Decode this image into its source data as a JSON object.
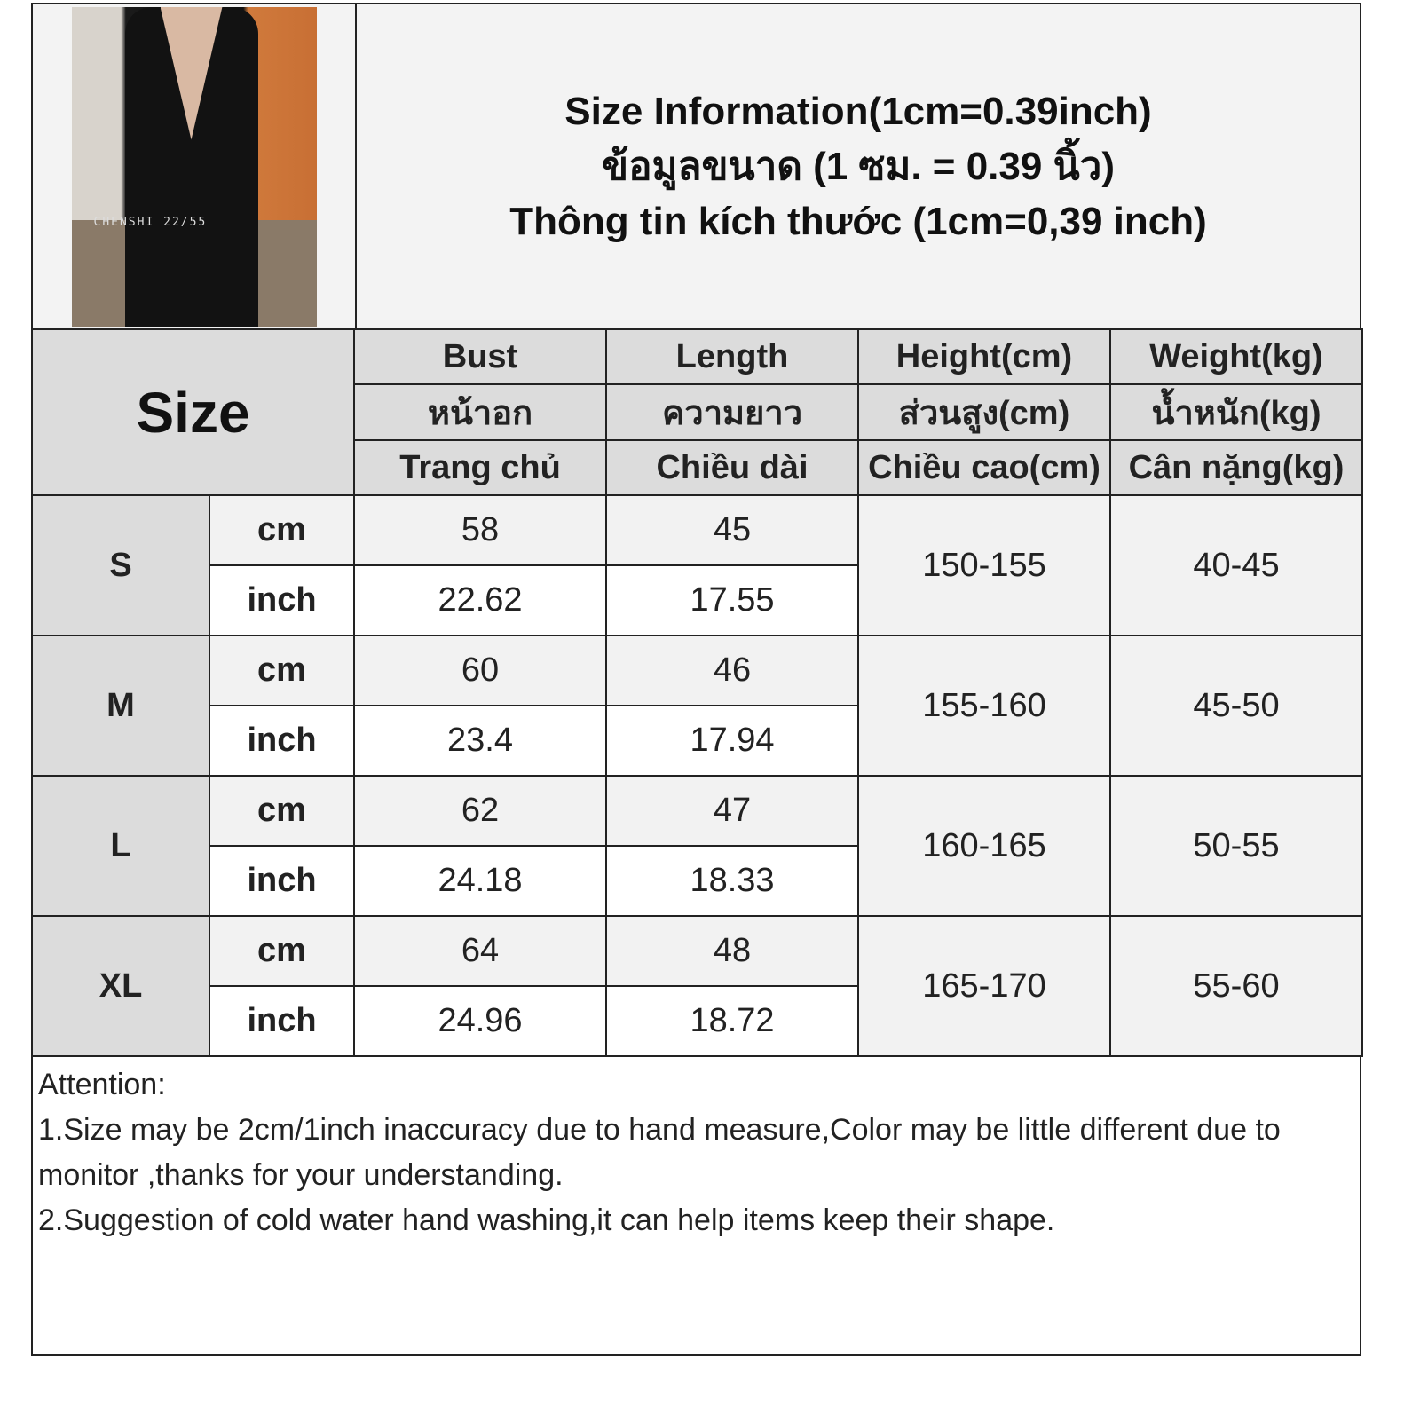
{
  "title_lines": [
    "Size Information(1cm=0.39inch)",
    "ข้อมูลขนาด (1 ซม. = 0.39 นิ้ว)",
    "Thông tin kích thước (1cm=0,39 inch)"
  ],
  "photo": {
    "watermark": "CHENSHI 22/55"
  },
  "size_label": "Size",
  "headers": [
    [
      "Bust",
      "หน้าอก",
      "Trang chủ"
    ],
    [
      "Length",
      "ความยาว",
      "Chiều dài"
    ],
    [
      "Height(cm)",
      "ส่วนสูง(cm)",
      "Chiều cao(cm)"
    ],
    [
      "Weight(kg)",
      "น้ำหนัก(kg)",
      "Cân nặng(kg)"
    ]
  ],
  "units": {
    "cm": "cm",
    "inch": "inch"
  },
  "rows": [
    {
      "size": "S",
      "bust_cm": "58",
      "length_cm": "45",
      "bust_in": "22.62",
      "length_in": "17.55",
      "height": "150-155",
      "weight": "40-45"
    },
    {
      "size": "M",
      "bust_cm": "60",
      "length_cm": "46",
      "bust_in": "23.4",
      "length_in": "17.94",
      "height": "155-160",
      "weight": "45-50"
    },
    {
      "size": "L",
      "bust_cm": "62",
      "length_cm": "47",
      "bust_in": "24.18",
      "length_in": "18.33",
      "height": "160-165",
      "weight": "50-55"
    },
    {
      "size": "XL",
      "bust_cm": "64",
      "length_cm": "48",
      "bust_in": "24.96",
      "length_in": "18.72",
      "height": "165-170",
      "weight": "55-60"
    }
  ],
  "notes": [
    "Attention:",
    "1.Size may be 2cm/1inch inaccuracy due to hand measure,Color may be little different due to monitor ,thanks for your understanding.",
    "2.Suggestion of cold water hand washing,it can help items keep their shape."
  ]
}
